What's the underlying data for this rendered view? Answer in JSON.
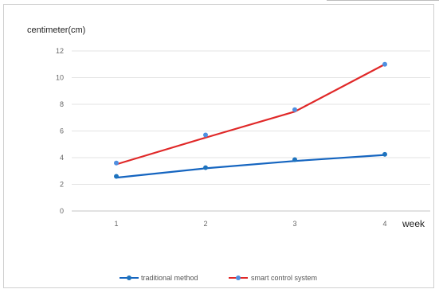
{
  "chart_data": {
    "type": "line",
    "ylabel": "centimeter(cm)",
    "xlabel": "week",
    "x": [
      1,
      2,
      3,
      4
    ],
    "ylim": [
      0,
      12
    ],
    "yticks": [
      0,
      2,
      4,
      6,
      8,
      10,
      12
    ],
    "grid": true,
    "legend_position": "bottom",
    "series": [
      {
        "name": "traditional method",
        "color": "#1565c0",
        "marker_color": "#1e73be",
        "line": [
          2.5,
          3.2,
          3.75,
          4.2
        ],
        "points": [
          2.6,
          3.25,
          3.85,
          4.25
        ]
      },
      {
        "name": "smart control system",
        "color": "#e02828",
        "marker_color": "#4f8fe0",
        "line": [
          3.5,
          5.5,
          7.45,
          11.0
        ],
        "points": [
          3.6,
          5.7,
          7.6,
          11.0
        ]
      }
    ]
  }
}
